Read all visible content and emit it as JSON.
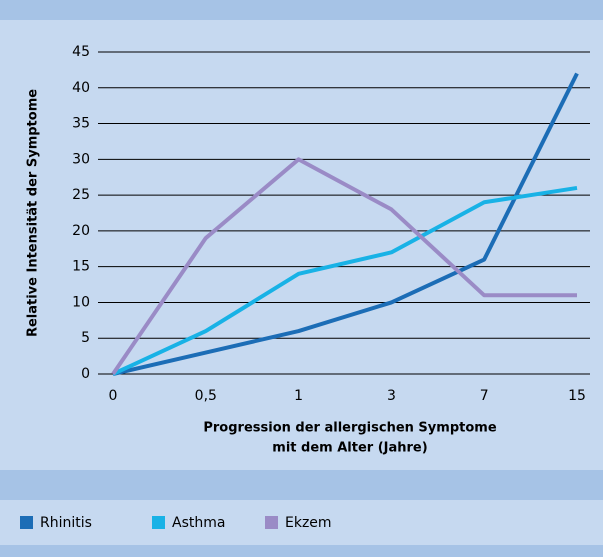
{
  "chart_data": {
    "type": "line",
    "ylabel": "Relative Intensität der Symptome",
    "xlabel": [
      "Progression der allergischen Symptome",
      "mit dem Alter (Jahre)"
    ],
    "categories": [
      "0",
      "0,5",
      "1",
      "3",
      "7",
      "15"
    ],
    "series": [
      {
        "name": "Rhinitis",
        "color": "#1c6db6",
        "values": [
          0,
          3,
          6,
          10,
          16,
          42
        ]
      },
      {
        "name": "Asthma",
        "color": "#18b2e6",
        "values": [
          0,
          6,
          14,
          17,
          24,
          26
        ]
      },
      {
        "name": "Ekzem",
        "color": "#9a8bc6",
        "values": [
          0,
          19,
          30,
          23,
          11,
          11
        ]
      }
    ],
    "ylim": [
      0,
      45
    ],
    "yticks": [
      0,
      5,
      10,
      15,
      20,
      25,
      30,
      35,
      40,
      45
    ],
    "grid": true
  }
}
